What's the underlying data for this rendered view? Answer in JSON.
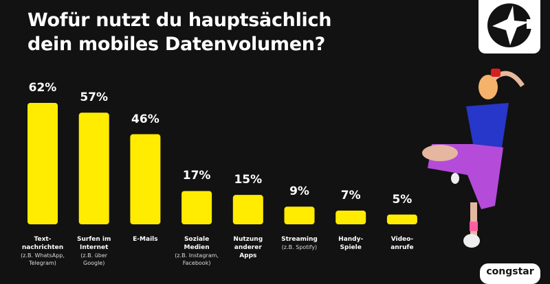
{
  "title_line1": "Wofür nutzt du hauptsächlich",
  "title_line2": "dein mobiles Datenvolumen?",
  "brand": "congstar",
  "colors": {
    "background": "#121212",
    "bar": "#FFEC00",
    "text": "#FFFFFF"
  },
  "chart_data": {
    "type": "bar",
    "title": "Wofür nutzt du hauptsächlich dein mobiles Datenvolumen?",
    "categories": [
      {
        "label": "Text-\nnachrichten",
        "sub": "(z.B. WhatsApp,\nTelegram)"
      },
      {
        "label": "Surfen im\nInternet",
        "sub": "(z.B. über\nGoogle)"
      },
      {
        "label": "E-Mails",
        "sub": ""
      },
      {
        "label": "Soziale\nMedien",
        "sub": "(z.B. Instagram,\nFacebook)"
      },
      {
        "label": "Nutzung\nanderer\nApps",
        "sub": ""
      },
      {
        "label": "Streaming",
        "sub": "(z.B. Spotify)"
      },
      {
        "label": "Handy-\nSpiele",
        "sub": ""
      },
      {
        "label": "Video-\nanrufe",
        "sub": ""
      }
    ],
    "values": [
      62,
      57,
      46,
      17,
      15,
      9,
      7,
      5
    ],
    "value_labels": [
      "62%",
      "57%",
      "46%",
      "17%",
      "15%",
      "9%",
      "7%",
      "5%"
    ],
    "unit": "%",
    "grid": false,
    "legend": "none"
  }
}
